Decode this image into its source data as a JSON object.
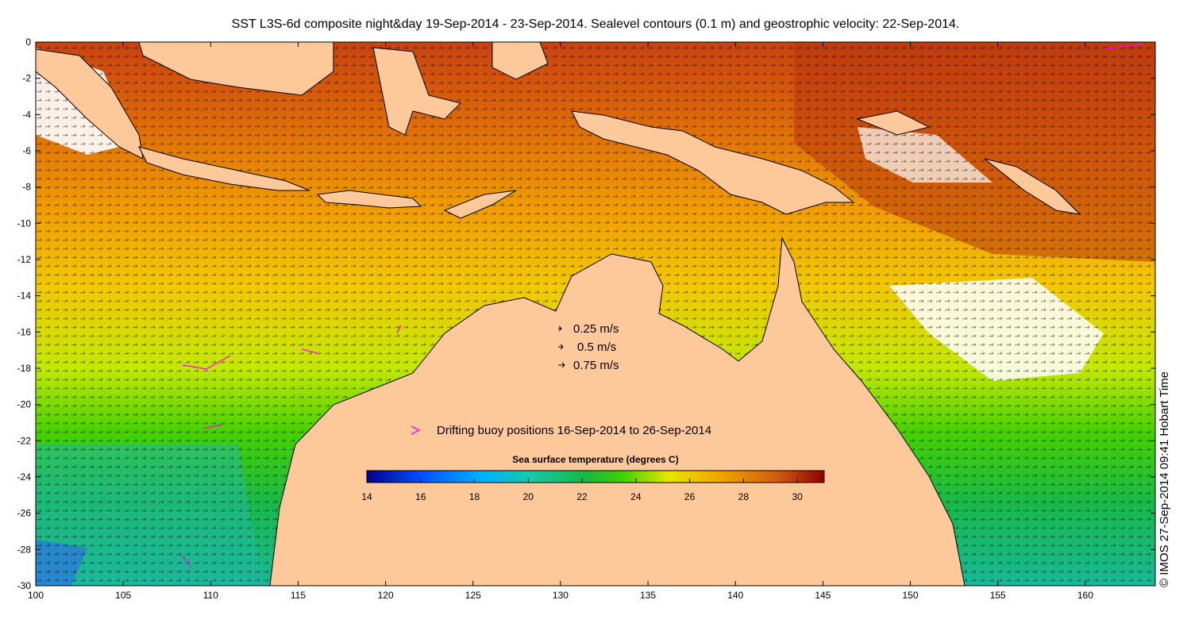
{
  "title": "SST L3S-6d composite night&day 19-Sep-2014 - 23-Sep-2014. Sealevel contours (0.1 m) and geostrophic velocity: 22-Sep-2014.",
  "credit": "© IMOS 27-Sep-2014 09:41 Hobart Time",
  "map": {
    "lon_range": [
      100,
      164
    ],
    "lat_range": [
      -30,
      0
    ],
    "lon_ticks": [
      100,
      105,
      110,
      115,
      120,
      125,
      130,
      135,
      140,
      145,
      150,
      155,
      160
    ],
    "lat_ticks": [
      0,
      -2,
      -4,
      -6,
      -8,
      -10,
      -12,
      -14,
      -16,
      -18,
      -20,
      -22,
      -24,
      -26,
      -28,
      -30
    ],
    "land_color": "#fdc99a",
    "no_data_color": "#ffffff"
  },
  "velocity_legend": {
    "items": [
      {
        "label": "0.25 m/s",
        "speed": 0.25
      },
      {
        "label": "0.5 m/s",
        "speed": 0.5
      },
      {
        "label": "0.75 m/s",
        "speed": 0.75
      }
    ]
  },
  "buoy_legend": {
    "label": "Drifting buoy positions 16-Sep-2014 to 26-Sep-2014",
    "color": "#ff00ff"
  },
  "colorbar": {
    "title": "Sea surface temperature (degrees C)",
    "min": 14,
    "max": 31,
    "ticks": [
      14,
      16,
      18,
      20,
      22,
      24,
      26,
      28,
      30
    ]
  }
}
